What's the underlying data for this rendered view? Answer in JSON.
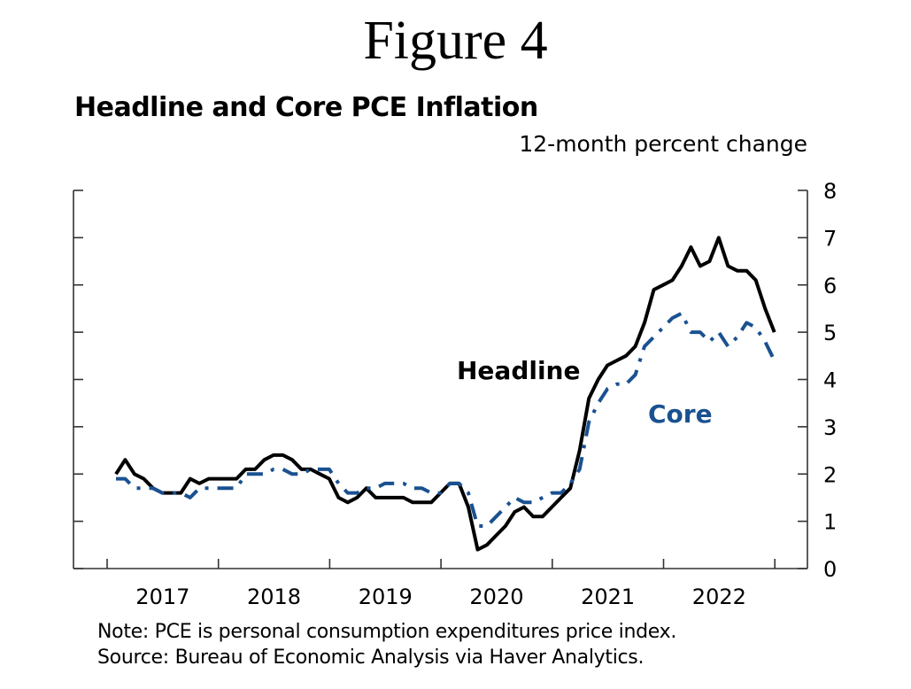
{
  "figure_title": "Figure 4",
  "note": "Note:  PCE is personal consumption expenditures price index.",
  "source": "Source:  Bureau of Economic Analysis via Haver Analytics.",
  "chart_data": {
    "type": "line",
    "title": "Headline and Core PCE Inflation",
    "ylabel": "12-month percent change",
    "xlabel": "",
    "x_start": "2017-01",
    "frequency": "monthly",
    "xlim": [
      "2017-01",
      "2022-12"
    ],
    "ylim": [
      0,
      8
    ],
    "y_ticks": [
      0,
      1,
      2,
      3,
      4,
      5,
      6,
      7,
      8
    ],
    "y_axis_side": "right",
    "x_tick_labels": [
      "2017",
      "2018",
      "2019",
      "2020",
      "2021",
      "2022"
    ],
    "grid": false,
    "legend": "inline labels",
    "series": [
      {
        "name": "Headline",
        "color": "#000000",
        "style": "solid",
        "values": [
          2.0,
          2.3,
          2.0,
          1.9,
          1.7,
          1.6,
          1.6,
          1.6,
          1.9,
          1.8,
          1.9,
          1.9,
          1.9,
          1.9,
          2.1,
          2.1,
          2.3,
          2.4,
          2.4,
          2.3,
          2.1,
          2.1,
          2.0,
          1.9,
          1.5,
          1.4,
          1.5,
          1.7,
          1.5,
          1.5,
          1.5,
          1.5,
          1.4,
          1.4,
          1.4,
          1.6,
          1.8,
          1.8,
          1.3,
          0.4,
          0.5,
          0.7,
          0.9,
          1.2,
          1.3,
          1.1,
          1.1,
          1.3,
          1.5,
          1.7,
          2.5,
          3.6,
          4.0,
          4.3,
          4.4,
          4.5,
          4.7,
          5.2,
          5.9,
          6.0,
          6.1,
          6.4,
          6.8,
          6.4,
          6.5,
          7.0,
          6.4,
          6.3,
          6.3,
          6.1,
          5.5,
          5.0
        ]
      },
      {
        "name": "Core",
        "color": "#1a5190",
        "style": "dash-dot",
        "values": [
          1.9,
          1.9,
          1.7,
          1.7,
          1.7,
          1.6,
          1.6,
          1.6,
          1.5,
          1.7,
          1.7,
          1.7,
          1.7,
          1.7,
          2.0,
          2.0,
          2.0,
          2.1,
          2.1,
          2.0,
          2.0,
          2.1,
          2.1,
          2.1,
          1.8,
          1.6,
          1.6,
          1.7,
          1.7,
          1.8,
          1.8,
          1.8,
          1.7,
          1.7,
          1.6,
          1.6,
          1.8,
          1.8,
          1.6,
          0.9,
          0.9,
          1.1,
          1.3,
          1.5,
          1.4,
          1.4,
          1.5,
          1.6,
          1.6,
          1.8,
          2.1,
          3.1,
          3.5,
          3.8,
          3.9,
          3.9,
          4.1,
          4.7,
          4.9,
          5.1,
          5.3,
          5.4,
          5.0,
          5.0,
          4.8,
          5.0,
          4.7,
          4.9,
          5.2,
          5.1,
          4.8,
          4.4
        ]
      }
    ]
  }
}
